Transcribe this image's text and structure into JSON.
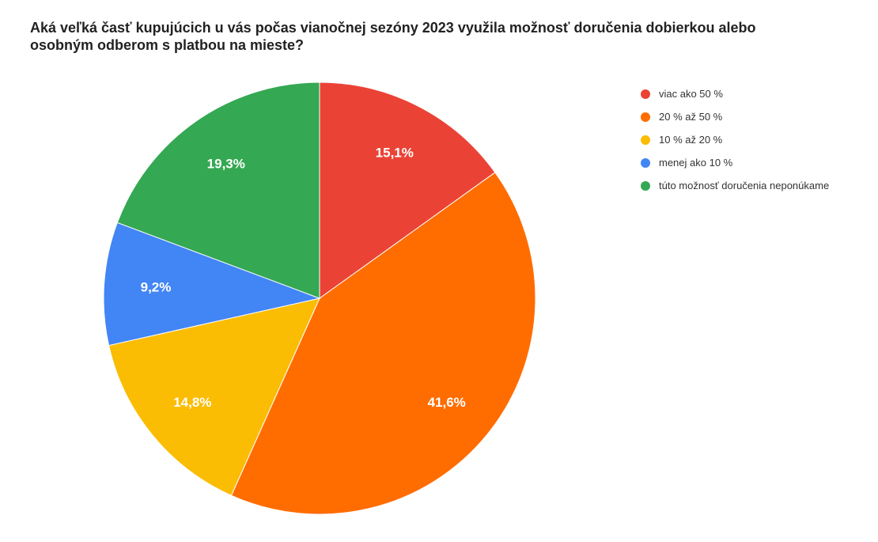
{
  "chart_data": {
    "type": "pie",
    "title": "Aká veľká časť kupujúcich u vás počas vianočnej sezóny 2023 využila možnosť doručenia dobierkou alebo osobným odberom s platbou na mieste?",
    "legend_position": "right",
    "slices": [
      {
        "label": "viac ako 50 %",
        "value": 15.1,
        "display": "15,1%",
        "color": "#EA4335"
      },
      {
        "label": "20 % až 50 %",
        "value": 41.6,
        "display": "41,6%",
        "color": "#FF6D01"
      },
      {
        "label": "10 % až 20 %",
        "value": 14.8,
        "display": "14,8%",
        "color": "#FBBC04"
      },
      {
        "label": "menej ako 10 %",
        "value": 9.2,
        "display": "9,2%",
        "color": "#4285F4"
      },
      {
        "label": "túto možnosť doručenia neponúkame",
        "value": 19.3,
        "display": "19,3%",
        "color": "#34A853"
      }
    ]
  }
}
